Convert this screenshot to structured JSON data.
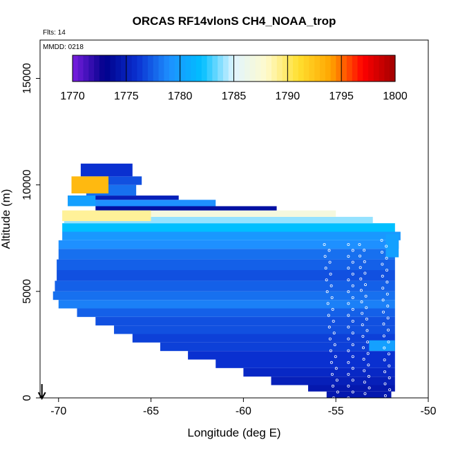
{
  "chart_data": {
    "type": "heatmap",
    "title": "ORCAS RF14vlonS CH4_NOAA_trop",
    "annotations": {
      "flights": "Flts: 14",
      "mmdd": "MMDD: 0218"
    },
    "xlabel": "Longitude (deg E)",
    "ylabel": "Altitude (m)",
    "xlim": [
      -71,
      -50
    ],
    "ylim": [
      0,
      16800
    ],
    "x_ticks": [
      -70,
      -65,
      -60,
      -55,
      -50
    ],
    "x_tick_labels": [
      "-70",
      "-65",
      "-60",
      "-55",
      "-50"
    ],
    "y_ticks": [
      0,
      5000,
      10000,
      15000
    ],
    "y_tick_labels": [
      "0",
      "5000",
      "10000",
      "15000"
    ],
    "colorbar": {
      "min": 1770,
      "max": 1800,
      "ticks": [
        1770,
        1775,
        1780,
        1785,
        1790,
        1795,
        1800
      ],
      "tick_labels": [
        "1770",
        "1775",
        "1780",
        "1785",
        "1790",
        "1795",
        "1800"
      ],
      "placement": "top, inside plot",
      "colors": [
        "#7a1fe0",
        "#00008b",
        "#0a30d0",
        "#1e90ff",
        "#00bfff",
        "#e0f4ff",
        "#fffacd",
        "#ffe030",
        "#ffa500",
        "#ff0000",
        "#a00000"
      ]
    },
    "bands": [
      {
        "alt": [
          0,
          300
        ],
        "lon": [
          -55.5,
          -52.0
        ],
        "value": 1774.5
      },
      {
        "alt": [
          300,
          600
        ],
        "lon": [
          -56.5,
          -51.8
        ],
        "value": 1774.5
      },
      {
        "alt": [
          600,
          1000
        ],
        "lon": [
          -58.5,
          -51.8
        ],
        "value": 1775
      },
      {
        "alt": [
          1000,
          1400
        ],
        "lon": [
          -60,
          -51.8
        ],
        "value": 1775.5
      },
      {
        "alt": [
          1400,
          1800
        ],
        "lon": [
          -61.5,
          -51.8
        ],
        "value": 1776
      },
      {
        "alt": [
          1800,
          2200
        ],
        "lon": [
          -63,
          -51.8
        ],
        "value": 1776
      },
      {
        "alt": [
          2200,
          2600
        ],
        "lon": [
          -64.5,
          -51.8
        ],
        "value": 1776.5
      },
      {
        "alt": [
          2600,
          3000
        ],
        "lon": [
          -66,
          -51.8
        ],
        "value": 1776.5
      },
      {
        "alt": [
          3000,
          3400
        ],
        "lon": [
          -67,
          -51.8
        ],
        "value": 1777
      },
      {
        "alt": [
          3400,
          3800
        ],
        "lon": [
          -68,
          -51.8
        ],
        "value": 1777
      },
      {
        "alt": [
          3800,
          4200
        ],
        "lon": [
          -69,
          -51.8
        ],
        "value": 1777.5
      },
      {
        "alt": [
          4200,
          4600
        ],
        "lon": [
          -70,
          -51.8
        ],
        "value": 1778.5
      },
      {
        "alt": [
          4600,
          5000
        ],
        "lon": [
          -70.3,
          -51.8
        ],
        "value": 1778
      },
      {
        "alt": [
          5000,
          5500
        ],
        "lon": [
          -70.2,
          -51.8
        ],
        "value": 1777.5
      },
      {
        "alt": [
          5500,
          6000
        ],
        "lon": [
          -70.1,
          -51.8
        ],
        "value": 1777
      },
      {
        "alt": [
          6000,
          6500
        ],
        "lon": [
          -70.1,
          -51.8
        ],
        "value": 1777.5
      },
      {
        "alt": [
          6500,
          7000
        ],
        "lon": [
          -70,
          -51.8
        ],
        "value": 1778
      },
      {
        "alt": [
          7000,
          7400
        ],
        "lon": [
          -70,
          -51.6
        ],
        "value": 1779
      },
      {
        "alt": [
          7400,
          7800
        ],
        "lon": [
          -69.8,
          -51.5
        ],
        "value": 1779.5
      },
      {
        "alt": [
          7800,
          8200
        ],
        "lon": [
          -69.8,
          -51.8
        ],
        "value": 1782
      },
      {
        "alt": [
          8200,
          8500
        ],
        "lon": [
          -69.7,
          -53
        ],
        "value": 1784
      },
      {
        "alt": [
          8500,
          8800
        ],
        "lon": [
          -69.8,
          -55
        ],
        "value": 1787
      },
      {
        "alt": [
          8800,
          9000
        ],
        "lon": [
          -68,
          -58.2
        ],
        "value": 1774
      },
      {
        "alt": [
          9000,
          9300
        ],
        "lon": [
          -69.5,
          -61.5
        ],
        "value": 1779
      },
      {
        "alt": [
          9300,
          9500
        ],
        "lon": [
          -69.5,
          -63.5
        ],
        "value": 1775
      },
      {
        "alt": [
          9500,
          10000
        ],
        "lon": [
          -68.5,
          -65.8
        ],
        "value": 1778
      },
      {
        "alt": [
          10000,
          10400
        ],
        "lon": [
          -68.8,
          -65.5
        ],
        "value": 1777
      },
      {
        "alt": [
          10400,
          11000
        ],
        "lon": [
          -68.8,
          -66
        ],
        "value": 1776
      }
    ],
    "features": [
      {
        "alt": [
          9600,
          10400
        ],
        "lon": [
          -69.3,
          -67.3
        ],
        "value": 1793
      },
      {
        "alt": [
          8300,
          8800
        ],
        "lon": [
          -69.8,
          -65
        ],
        "value": 1789
      },
      {
        "alt": [
          2200,
          2700
        ],
        "lon": [
          -53.2,
          -51.8
        ],
        "value": 1780
      },
      {
        "alt": [
          6600,
          7700
        ],
        "lon": [
          -52.3,
          -51.6
        ],
        "value": 1780
      },
      {
        "alt": [
          9000,
          9500
        ],
        "lon": [
          -69.5,
          -68
        ],
        "value": 1780
      }
    ],
    "profiles": [
      {
        "lon_bottom": -55,
        "lon_top": -55.5,
        "alt": [
          0,
          7200
        ]
      },
      {
        "lon_bottom": -54.2,
        "lon_top": -54.2,
        "alt": [
          0,
          7200
        ]
      },
      {
        "lon_bottom": -53.3,
        "lon_top": -53.6,
        "alt": [
          200,
          7200
        ]
      },
      {
        "lon_bottom": -52.2,
        "lon_top": -52.4,
        "alt": [
          100,
          7400
        ]
      }
    ],
    "arrow_longitude": -70.9
  }
}
